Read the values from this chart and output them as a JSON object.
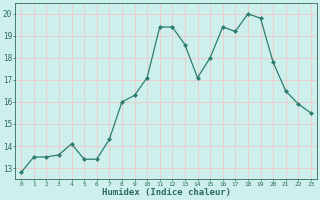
{
  "x": [
    0,
    1,
    2,
    3,
    4,
    5,
    6,
    7,
    8,
    9,
    10,
    11,
    12,
    13,
    14,
    15,
    16,
    17,
    18,
    19,
    20,
    21,
    22,
    23
  ],
  "y": [
    12.8,
    13.5,
    13.5,
    13.6,
    14.1,
    13.4,
    13.4,
    14.3,
    16.0,
    16.3,
    17.1,
    19.4,
    19.4,
    18.6,
    17.1,
    18.0,
    19.4,
    19.2,
    20.0,
    19.8,
    17.8,
    16.5,
    15.9,
    15.5
  ],
  "line_color": "#2e7d6e",
  "marker": "D",
  "marker_size": 2.0,
  "linewidth": 0.9,
  "xlabel": "Humidex (Indice chaleur)",
  "xlabel_fontsize": 6.5,
  "ytick_fontsize": 5.5,
  "xtick_fontsize": 4.5,
  "yticks": [
    13,
    14,
    15,
    16,
    17,
    18,
    19,
    20
  ],
  "xticks": [
    0,
    1,
    2,
    3,
    4,
    5,
    6,
    7,
    8,
    9,
    10,
    11,
    12,
    13,
    14,
    15,
    16,
    17,
    18,
    19,
    20,
    21,
    22,
    23
  ],
  "xlim": [
    -0.5,
    23.5
  ],
  "ylim": [
    12.5,
    20.5
  ],
  "bg_color": "#cdf0ed",
  "grid_color": "#f0c8c8",
  "tick_color": "#2e6b5e",
  "axis_color": "#2e6b5e",
  "spine_color": "#2e6b5e"
}
